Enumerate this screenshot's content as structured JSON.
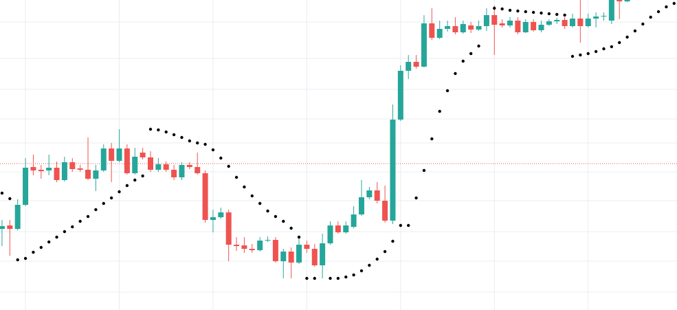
{
  "chart_data": {
    "type": "candlestick",
    "x": [
      0,
      1,
      2,
      3,
      4,
      5,
      6,
      7,
      8,
      9,
      10,
      11,
      12,
      13,
      14,
      15,
      16,
      17,
      18,
      19,
      20,
      21,
      22,
      23,
      24,
      25,
      26,
      27,
      28,
      29,
      30,
      31,
      32,
      33,
      34,
      35,
      36,
      37,
      38,
      39,
      40,
      41,
      42,
      43,
      44,
      45,
      46,
      47,
      48,
      49,
      50,
      51,
      52,
      53,
      54,
      55,
      56,
      57,
      58,
      59,
      60,
      61,
      62,
      63,
      64,
      65,
      66,
      67,
      68,
      69,
      70,
      71,
      72,
      73,
      74,
      75,
      76,
      77,
      78,
      79,
      80
    ],
    "open": [
      118,
      123,
      118,
      153,
      208,
      204,
      203,
      207,
      189,
      215,
      206,
      204,
      191,
      203,
      235,
      217,
      235,
      199,
      229,
      222,
      204,
      212,
      204,
      193,
      211,
      208,
      199,
      131,
      135,
      142,
      95,
      94,
      89,
      87,
      101,
      102,
      71,
      85,
      69,
      95,
      89,
      65,
      97,
      123,
      113,
      121,
      139,
      164,
      174,
      159,
      130,
      277,
      348,
      361,
      354,
      417,
      396,
      409,
      413,
      404,
      414,
      408,
      413,
      429,
      417,
      414,
      421,
      404,
      419,
      407,
      415,
      420,
      422,
      413,
      424,
      413,
      424,
      427,
      421,
      451,
      449
    ],
    "high": [
      131,
      131,
      161,
      221,
      226,
      211,
      226,
      216,
      223,
      221,
      211,
      251,
      211,
      241,
      243,
      263,
      241,
      236,
      236,
      231,
      221,
      216,
      211,
      215,
      215,
      229,
      203,
      146,
      149,
      146,
      106,
      106,
      96,
      106,
      107,
      106,
      89,
      91,
      106,
      101,
      96,
      111,
      129,
      129,
      129,
      151,
      189,
      179,
      186,
      181,
      299,
      356,
      371,
      371,
      429,
      439,
      421,
      421,
      426,
      421,
      419,
      421,
      439,
      443,
      423,
      426,
      426,
      423,
      423,
      421,
      423,
      425,
      426,
      431,
      451,
      431,
      433,
      433,
      451,
      451,
      451
    ],
    "low": [
      93,
      79,
      116,
      151,
      196,
      191,
      196,
      186,
      187,
      201,
      201,
      189,
      173,
      201,
      186,
      215,
      197,
      197,
      219,
      201,
      201,
      201,
      189,
      189,
      205,
      197,
      127,
      113,
      133,
      71,
      86,
      83,
      83,
      85,
      99,
      69,
      46,
      46,
      67,
      83,
      63,
      46,
      95,
      111,
      111,
      119,
      137,
      161,
      155,
      127,
      125,
      275,
      336,
      351,
      353,
      393,
      394,
      405,
      401,
      402,
      403,
      406,
      406,
      371,
      411,
      411,
      401,
      403,
      405,
      404,
      413,
      416,
      409,
      411,
      389,
      411,
      411,
      421,
      416,
      423,
      448
    ],
    "close": [
      122,
      118,
      153,
      207,
      203,
      202,
      207,
      189,
      215,
      205,
      204,
      191,
      203,
      235,
      217,
      235,
      199,
      223,
      222,
      204,
      212,
      204,
      193,
      211,
      208,
      199,
      131,
      135,
      142,
      95,
      93,
      89,
      87,
      101,
      102,
      71,
      85,
      69,
      95,
      89,
      65,
      97,
      123,
      113,
      123,
      139,
      164,
      174,
      159,
      130,
      277,
      348,
      361,
      354,
      417,
      396,
      409,
      413,
      404,
      416,
      408,
      413,
      429,
      415,
      414,
      421,
      404,
      419,
      407,
      415,
      420,
      422,
      413,
      424,
      413,
      424,
      427,
      428,
      451,
      449,
      451
    ],
    "up_color": "#26a69a",
    "down_color": "#ef5350",
    "sar": {
      "x": [
        0,
        1,
        2,
        3,
        4,
        5,
        6,
        7,
        8,
        9,
        10,
        11,
        12,
        13,
        14,
        15,
        16,
        17,
        18,
        19,
        20,
        21,
        22,
        23,
        24,
        25,
        26,
        27,
        28,
        29,
        30,
        31,
        32,
        33,
        34,
        35,
        36,
        37,
        38,
        39,
        40,
        41,
        42,
        43,
        44,
        45,
        46,
        47,
        48,
        49,
        50,
        51,
        52,
        53,
        54,
        55,
        56,
        57,
        58,
        59,
        60,
        61,
        62,
        63,
        64,
        65,
        66,
        67,
        68,
        69,
        70,
        71,
        72,
        73,
        74,
        75,
        76,
        77,
        78,
        79,
        80,
        81,
        82,
        83,
        84,
        85,
        86
      ],
      "values": [
        170,
        162,
        73,
        75,
        84,
        91,
        99,
        106,
        114,
        121,
        129,
        136,
        146,
        155,
        163,
        172,
        181,
        189,
        195,
        263,
        262,
        259,
        255,
        251,
        246,
        243,
        241,
        233,
        221,
        209,
        193,
        179,
        166,
        155,
        144,
        136,
        129,
        119,
        106,
        46,
        46,
        null,
        46,
        46,
        48,
        51,
        57,
        65,
        74,
        85,
        100,
        123,
        123,
        163,
        203,
        249,
        289,
        319,
        344,
        362,
        373,
        384,
        null,
        439,
        438,
        436,
        435,
        434,
        433,
        432,
        431,
        430,
        429,
        369,
        371,
        373,
        376,
        380,
        383,
        389,
        397,
        406,
        416,
        426,
        434,
        441,
        446
      ],
      "color": "#000000"
    },
    "price_line": 213,
    "price_line_color": "#ef5350",
    "xlim": [
      -0.26,
      86.37
    ],
    "ylim": [
      0,
      451
    ],
    "xticks": [
      3,
      15,
      27,
      39,
      51,
      63,
      75
    ],
    "yticks": [
      26,
      71,
      114,
      159,
      201,
      243,
      278,
      321,
      366,
      419
    ],
    "grid": true,
    "grid_color": "#e8edf2"
  }
}
